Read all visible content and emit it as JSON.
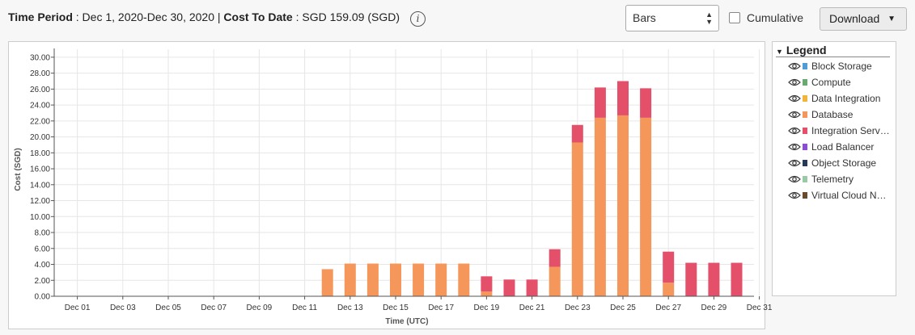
{
  "header": {
    "period_label": "Time Period",
    "period_value": " : Dec 1, 2020-Dec 30, 2020 | ",
    "cost_label": "Cost To Date",
    "cost_value": " : SGD 159.09 (SGD)",
    "info_icon": "i"
  },
  "controls": {
    "chart_type_selected": "Bars",
    "cumulative_label": "Cumulative",
    "cumulative_checked": false,
    "download_label": "Download"
  },
  "legend": {
    "title": "Legend",
    "items": [
      {
        "label": "Block Storage",
        "color": "#4e9dd8",
        "icon": "eye-icon"
      },
      {
        "label": "Compute",
        "color": "#6aaa72",
        "icon": "eye-icon"
      },
      {
        "label": "Data Integration",
        "color": "#f2b53c",
        "icon": "eye-icon"
      },
      {
        "label": "Database",
        "color": "#f5965a",
        "icon": "eye-icon"
      },
      {
        "label": "Integration Serv…",
        "color": "#e4506a",
        "icon": "eye-icon"
      },
      {
        "label": "Load Balancer",
        "color": "#8a4fd0",
        "icon": "eye-icon"
      },
      {
        "label": "Object Storage",
        "color": "#263a58",
        "icon": "eye-icon"
      },
      {
        "label": "Telemetry",
        "color": "#9ac9a6",
        "icon": "eye-icon"
      },
      {
        "label": "Virtual Cloud N…",
        "color": "#6a4a2c",
        "icon": "eye-icon"
      }
    ]
  },
  "chart_data": {
    "type": "bar",
    "stacked": true,
    "title": "",
    "xlabel": "Time (UTC)",
    "ylabel": "Cost (SGD)",
    "ylim": [
      0,
      31
    ],
    "yticks": [
      "0.00",
      "2.00",
      "4.00",
      "6.00",
      "8.00",
      "10.00",
      "12.00",
      "14.00",
      "16.00",
      "18.00",
      "20.00",
      "22.00",
      "24.00",
      "26.00",
      "28.00",
      "30.00"
    ],
    "xticks": [
      "Dec 01",
      "Dec 03",
      "Dec 05",
      "Dec 07",
      "Dec 09",
      "Dec 11",
      "Dec 13",
      "Dec 15",
      "Dec 17",
      "Dec 19",
      "Dec 21",
      "Dec 23",
      "Dec 25",
      "Dec 27",
      "Dec 29",
      "Dec 31"
    ],
    "grid": true,
    "categories": [
      "Dec 12",
      "Dec 13",
      "Dec 14",
      "Dec 15",
      "Dec 16",
      "Dec 17",
      "Dec 18",
      "Dec 19",
      "Dec 20",
      "Dec 21",
      "Dec 22",
      "Dec 23",
      "Dec 24",
      "Dec 25",
      "Dec 26",
      "Dec 27",
      "Dec 28",
      "Dec 29",
      "Dec 30"
    ],
    "series": [
      {
        "name": "Database",
        "color": "#f5965a",
        "values": [
          3.4,
          4.1,
          4.1,
          4.1,
          4.1,
          4.1,
          4.1,
          0.6,
          0,
          0,
          3.7,
          19.3,
          22.4,
          22.7,
          22.4,
          1.7,
          0,
          0,
          0
        ]
      },
      {
        "name": "Integration Serv…",
        "color": "#e4506a",
        "values": [
          0,
          0,
          0,
          0,
          0,
          0,
          0,
          1.9,
          2.1,
          2.1,
          2.2,
          2.2,
          3.8,
          4.3,
          3.7,
          3.9,
          4.2,
          4.2,
          4.2
        ]
      }
    ]
  }
}
